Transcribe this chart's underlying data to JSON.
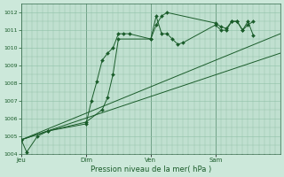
{
  "xlabel": "Pression niveau de la mer( hPa )",
  "bg_color": "#cce8da",
  "plot_bg_color": "#c0e0d0",
  "grid_color": "#90c0a8",
  "line_color": "#1a5c2a",
  "ylim": [
    1004,
    1012.5
  ],
  "yticks": [
    1004,
    1005,
    1006,
    1007,
    1008,
    1009,
    1010,
    1011,
    1012
  ],
  "xlim": [
    0,
    48
  ],
  "day_labels": [
    "Jeu",
    "Dim",
    "Ven",
    "Sam"
  ],
  "day_positions": [
    0,
    12,
    24,
    36
  ],
  "minor_xticks_interval": 1,
  "line1_x": [
    0,
    1,
    3,
    5,
    12,
    13,
    14,
    15,
    16,
    17,
    18,
    19,
    20,
    24,
    25,
    26,
    27,
    28,
    29,
    30,
    36,
    37,
    38,
    39,
    40,
    41,
    42,
    43
  ],
  "line1_y": [
    1004.8,
    1004.1,
    1005.0,
    1005.3,
    1005.7,
    1007.0,
    1008.1,
    1009.3,
    1009.7,
    1010.0,
    1010.8,
    1010.8,
    1010.8,
    1010.5,
    1011.8,
    1010.8,
    1010.8,
    1010.5,
    1010.2,
    1010.3,
    1011.3,
    1011.0,
    1011.0,
    1011.5,
    1011.5,
    1011.0,
    1011.5,
    1010.7
  ],
  "line2_x": [
    0,
    48
  ],
  "line2_y": [
    1004.8,
    1010.8
  ],
  "line3_x": [
    0,
    48
  ],
  "line3_y": [
    1004.8,
    1009.7
  ],
  "line4_x": [
    0,
    5,
    12,
    15,
    16,
    17,
    18,
    24,
    25,
    26,
    27,
    36,
    37,
    38,
    39,
    40,
    41,
    42,
    43
  ],
  "line4_y": [
    1004.8,
    1005.3,
    1005.8,
    1006.5,
    1007.2,
    1008.5,
    1010.5,
    1010.5,
    1011.3,
    1011.8,
    1012.0,
    1011.4,
    1011.2,
    1011.1,
    1011.5,
    1011.5,
    1011.0,
    1011.3,
    1011.5
  ]
}
